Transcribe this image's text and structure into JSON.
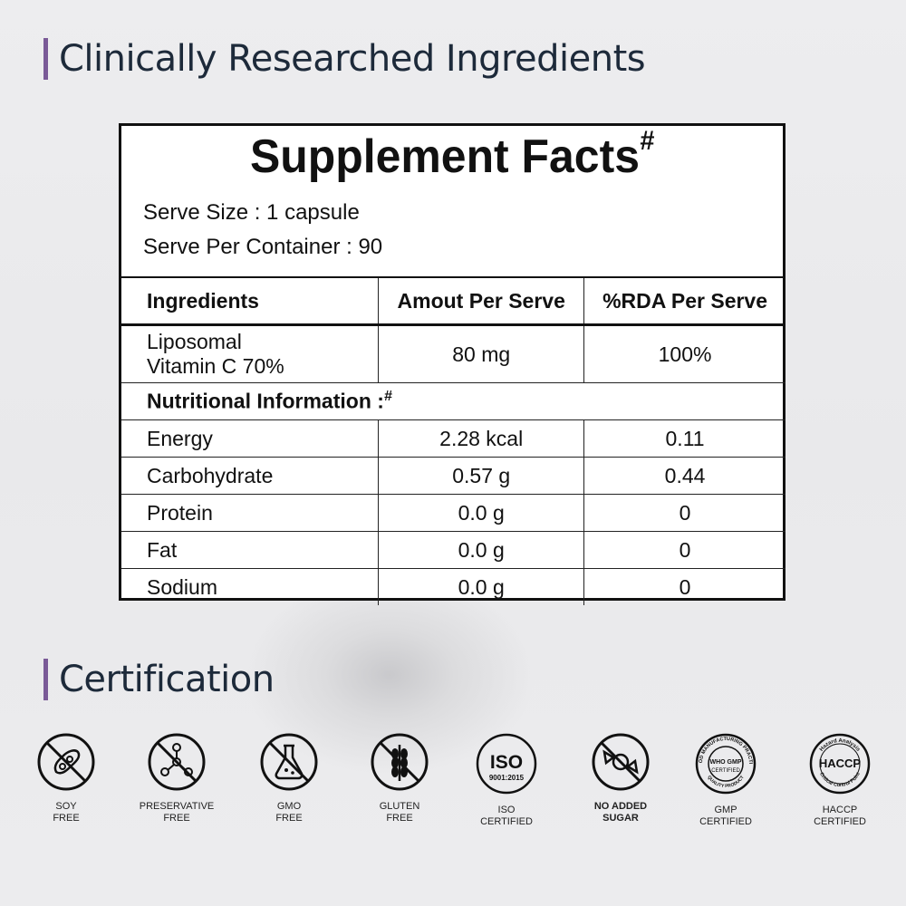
{
  "headings": {
    "ingredients": "Clinically Researched Ingredients",
    "certification": "Certification"
  },
  "facts": {
    "title": "Supplement Facts",
    "title_mark": "#",
    "serve_size": "Serve Size : 1 capsule",
    "serve_per_container": "Serve Per Container : 90",
    "columns": [
      "Ingredients",
      "Amout Per Serve",
      "%RDA Per Serve"
    ],
    "main_ingredient": {
      "name_line1": "Liposomal",
      "name_line2": "Vitamin C 70%",
      "amount": "80 mg",
      "rda": "100%"
    },
    "nutritional_label": "Nutritional Information :",
    "nutritional_mark": "#",
    "rows": [
      {
        "name": "Energy",
        "amount": "2.28 kcal",
        "rda": "0.11"
      },
      {
        "name": "Carbohydrate",
        "amount": "0.57 g",
        "rda": "0.44"
      },
      {
        "name": "Protein",
        "amount": "0.0 g",
        "rda": "0"
      },
      {
        "name": "Fat",
        "amount": "0.0 g",
        "rda": "0"
      },
      {
        "name": "Sodium",
        "amount": "0.0 g",
        "rda": "0"
      }
    ]
  },
  "certifications": [
    {
      "icon": "soy-free-icon",
      "label": "SOY\nFREE"
    },
    {
      "icon": "preservative-free-icon",
      "label": "PRESERVATIVE\nFREE"
    },
    {
      "icon": "gmo-free-icon",
      "label": "GMO\nFREE"
    },
    {
      "icon": "gluten-free-icon",
      "label": "GLUTEN\nFREE"
    },
    {
      "icon": "iso-icon",
      "label": "ISO\nCERTIFIED",
      "badge_text": "ISO",
      "badge_sub": "9001:2015"
    },
    {
      "icon": "no-added-sugar-icon",
      "label": "NO ADDED\nSUGAR"
    },
    {
      "icon": "gmp-icon",
      "label": "GMP\nCERTIFIED",
      "badge_text": "WHO GMP",
      "badge_sub": "CERTIFIED",
      "ring_top": "GOOD MANUFACTURING PRACTICE",
      "ring_bottom": "QUALITY PRODUCT"
    },
    {
      "icon": "haccp-icon",
      "label": "HACCP\nCERTIFIED",
      "badge_text": "HACCP",
      "ring_top": "Hazard Analysis",
      "ring_bottom": "Critical Control Point"
    }
  ],
  "colors": {
    "accent_bar": "#7a5a97",
    "heading": "#1d2a3a",
    "background": "#ebebed"
  }
}
